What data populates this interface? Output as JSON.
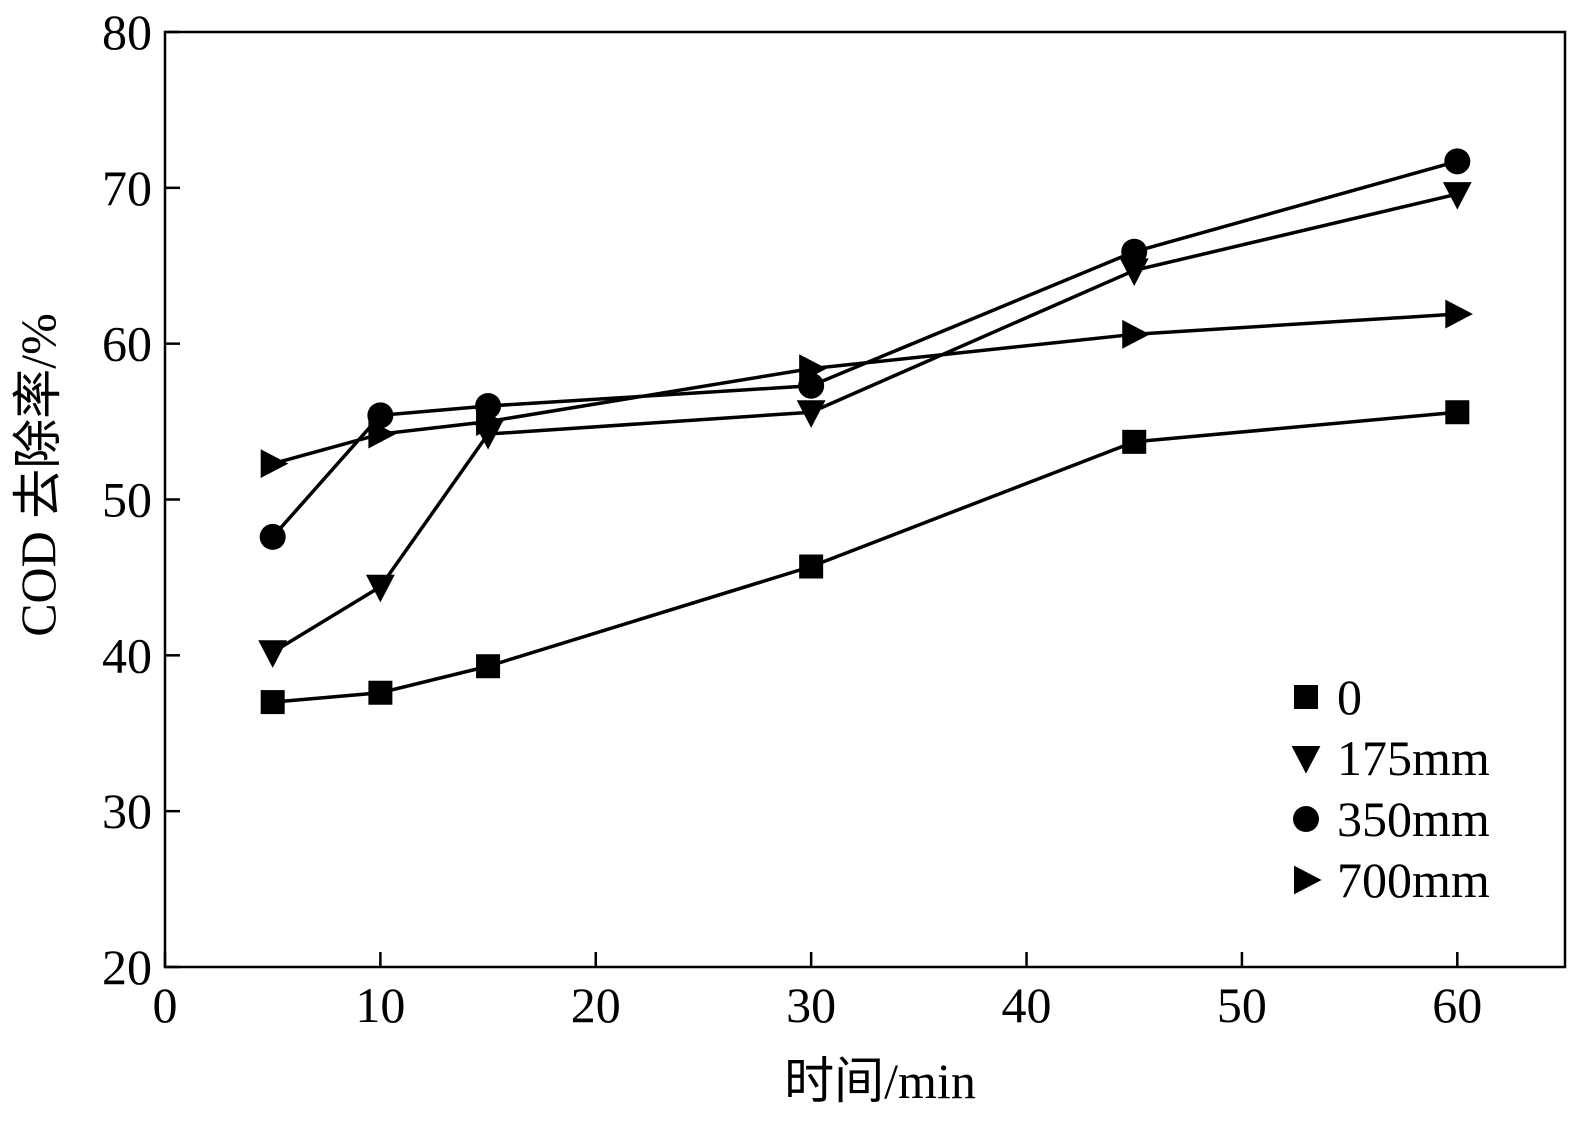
{
  "chart_data": {
    "type": "line",
    "title": "",
    "xlabel": "时间/min",
    "ylabel": "COD 去除率/%",
    "xlim": [
      0,
      65
    ],
    "ylim": [
      20,
      80
    ],
    "xticks": [
      0,
      10,
      20,
      30,
      40,
      50,
      60
    ],
    "yticks": [
      20,
      30,
      40,
      50,
      60,
      70,
      80
    ],
    "grid": false,
    "legend_position": "bottom-right",
    "x": [
      5,
      10,
      15,
      30,
      45,
      60
    ],
    "series": [
      {
        "name": "0",
        "marker": "square",
        "values": [
          37.0,
          37.6,
          39.3,
          45.7,
          53.7,
          55.6
        ]
      },
      {
        "name": "175mm",
        "marker": "triangle-down",
        "values": [
          40.2,
          44.4,
          54.2,
          55.6,
          64.7,
          69.6
        ]
      },
      {
        "name": "350mm",
        "marker": "circle",
        "values": [
          47.6,
          55.4,
          56.0,
          57.3,
          65.9,
          71.7
        ]
      },
      {
        "name": "700mm",
        "marker": "triangle-right",
        "values": [
          52.3,
          54.2,
          55.0,
          58.4,
          60.6,
          61.9
        ]
      }
    ]
  }
}
